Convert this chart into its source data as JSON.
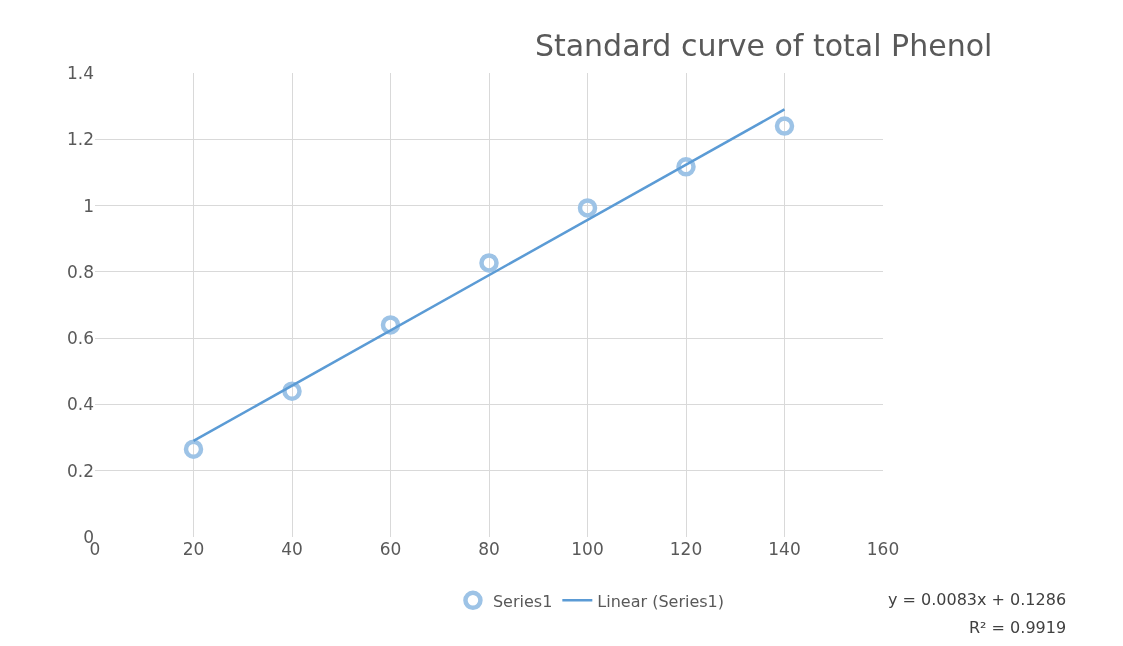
{
  "chart_data": {
    "type": "scatter",
    "title": "Standard curve of total Phenol",
    "series": [
      {
        "name": "Series1",
        "marker": "circle",
        "color": "#9dc3e6",
        "x": [
          20,
          40,
          60,
          80,
          100,
          120,
          140
        ],
        "values": [
          0.265,
          0.44,
          0.64,
          0.827,
          0.993,
          1.117,
          1.24
        ]
      },
      {
        "name": "Linear (Series1)",
        "type": "line",
        "marker": "none",
        "color": "#5b9bd5",
        "x": [
          20,
          140
        ],
        "values": [
          0.29,
          1.29
        ]
      }
    ],
    "xlim": [
      0,
      160
    ],
    "xticks": [
      0,
      20,
      40,
      60,
      80,
      100,
      120,
      140,
      160
    ],
    "ylim": [
      0,
      1.4
    ],
    "yticks": [
      0,
      0.2,
      0.4,
      0.6,
      0.8,
      1,
      1.2,
      1.4
    ],
    "grid": true,
    "legend": "bottom",
    "annotations": [
      "y = 0.0083x + 0.1286",
      "R² = 0.9919"
    ]
  }
}
